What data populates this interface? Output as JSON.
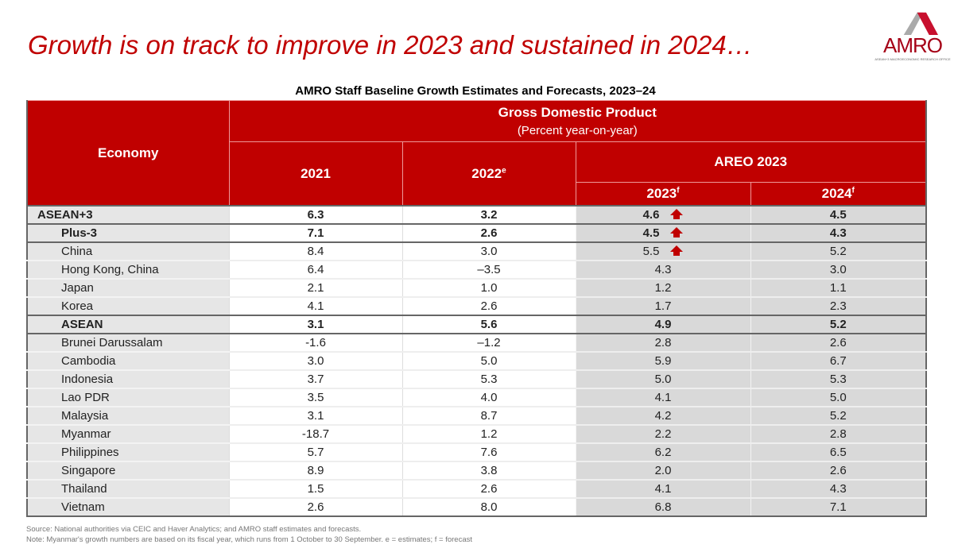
{
  "title": "Growth is on track to improve in 2023 and sustained in 2024…",
  "logo": {
    "text": "AMRO",
    "subtitle": "ASEAN+3 MACROECONOMIC RESEARCH OFFICE"
  },
  "table": {
    "caption": "AMRO Staff Baseline Growth Estimates and Forecasts, 2023–24",
    "economy_header": "Economy",
    "gdp_header": "Gross Domestic Product",
    "gdp_subheader": "(Percent year-on-year)",
    "col_2021": "2021",
    "col_2022": "2022",
    "col_2022_sup": "e",
    "areo_header": "AREO 2023",
    "col_2023": "2023",
    "col_2023_sup": "f",
    "col_2024": "2024",
    "col_2024_sup": "f",
    "rows": [
      {
        "economy": "ASEAN+3",
        "y2021": "6.3",
        "y2022": "3.2",
        "y2023": "4.6",
        "y2024": "4.5",
        "bold": true,
        "up": true
      },
      {
        "economy": "Plus-3",
        "y2021": "7.1",
        "y2022": "2.6",
        "y2023": "4.5",
        "y2024": "4.3",
        "bold": true,
        "up": true
      },
      {
        "economy": "China",
        "y2021": "8.4",
        "y2022": "3.0",
        "y2023": "5.5",
        "y2024": "5.2",
        "up": true
      },
      {
        "economy": "Hong Kong, China",
        "y2021": "6.4",
        "y2022": "–3.5",
        "y2023": "4.3",
        "y2024": "3.0"
      },
      {
        "economy": "Japan",
        "y2021": "2.1",
        "y2022": "1.0",
        "y2023": "1.2",
        "y2024": "1.1"
      },
      {
        "economy": "Korea",
        "y2021": "4.1",
        "y2022": "2.6",
        "y2023": "1.7",
        "y2024": "2.3"
      },
      {
        "economy": "ASEAN",
        "y2021": "3.1",
        "y2022": "5.6",
        "y2023": "4.9",
        "y2024": "5.2",
        "bold": true
      },
      {
        "economy": "Brunei Darussalam",
        "y2021": "-1.6",
        "y2022": "–1.2",
        "y2023": "2.8",
        "y2024": "2.6"
      },
      {
        "economy": "Cambodia",
        "y2021": "3.0",
        "y2022": "5.0",
        "y2023": "5.9",
        "y2024": "6.7"
      },
      {
        "economy": "Indonesia",
        "y2021": "3.7",
        "y2022": "5.3",
        "y2023": "5.0",
        "y2024": "5.3"
      },
      {
        "economy": "Lao PDR",
        "y2021": "3.5",
        "y2022": "4.0",
        "y2023": "4.1",
        "y2024": "5.0"
      },
      {
        "economy": "Malaysia",
        "y2021": "3.1",
        "y2022": "8.7",
        "y2023": "4.2",
        "y2024": "5.2"
      },
      {
        "economy": "Myanmar",
        "y2021": "-18.7",
        "y2022": "1.2",
        "y2023": "2.2",
        "y2024": "2.8"
      },
      {
        "economy": "Philippines",
        "y2021": "5.7",
        "y2022": "7.6",
        "y2023": "6.2",
        "y2024": "6.5"
      },
      {
        "economy": "Singapore",
        "y2021": "8.9",
        "y2022": "3.8",
        "y2023": "2.0",
        "y2024": "2.6"
      },
      {
        "economy": "Thailand",
        "y2021": "1.5",
        "y2022": "2.6",
        "y2023": "4.1",
        "y2024": "4.3"
      },
      {
        "economy": "Vietnam",
        "y2021": "2.6",
        "y2022": "8.0",
        "y2023": "6.8",
        "y2024": "7.1"
      }
    ]
  },
  "source": "Source: National authorities via CEIC  and Haver Analytics; and AMRO  staff estimates and forecasts.",
  "note": "Note:  Myanmar's growth numbers are based on its fiscal year, which runs from 1 October to 30 September.  e = estimates; f =  forecast",
  "colors": {
    "accent": "#c00000",
    "economy_col": "#e6e6e6",
    "forecast_col": "#d9d9d9"
  },
  "icons": {
    "upgrade": "red-up-arrow-icon"
  }
}
